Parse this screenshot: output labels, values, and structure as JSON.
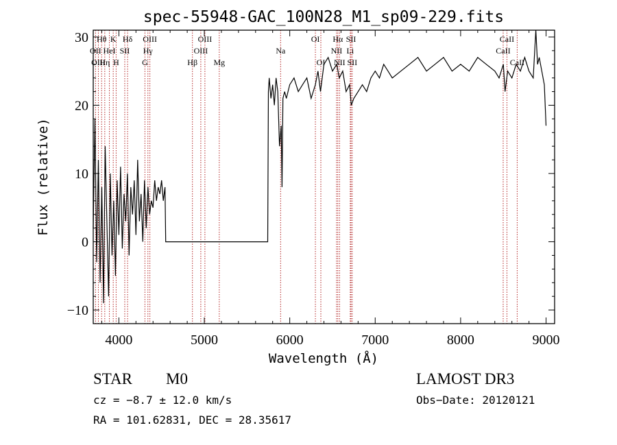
{
  "chart_data": {
    "type": "line",
    "title": "spec-55948-GAC_100N28_M1_sp09-229.fits",
    "xlabel": "Wavelength (Å)",
    "ylabel": "Flux (relative)",
    "xlim": [
      3700,
      9100
    ],
    "ylim": [
      -12,
      31
    ],
    "xticks": [
      4000,
      5000,
      6000,
      7000,
      8000,
      9000
    ],
    "yticks": [
      -10,
      0,
      10,
      20,
      30
    ],
    "grid": false,
    "series": [
      {
        "x": [
          3700,
          3720,
          3740,
          3760,
          3780,
          3800,
          3820,
          3840,
          3860,
          3880,
          3900,
          3920,
          3940,
          3960,
          3980,
          4000,
          4020,
          4040,
          4060,
          4080,
          4100,
          4120,
          4140,
          4160,
          4180,
          4200,
          4220,
          4240,
          4260,
          4280,
          4300,
          4320,
          4340,
          4360,
          4380,
          4400,
          4420,
          4440,
          4460,
          4480,
          4500,
          4520,
          4540,
          4548,
          4560,
          5700,
          5742,
          5750,
          5760,
          5780,
          5800,
          5820,
          5840,
          5860,
          5880,
          5900,
          5910,
          5920,
          5940,
          5960,
          6000,
          6050,
          6100,
          6150,
          6200,
          6250,
          6300,
          6330,
          6360,
          6400,
          6450,
          6500,
          6550,
          6580,
          6620,
          6660,
          6700,
          6720,
          6750,
          6800,
          6850,
          6900,
          6950,
          7000,
          7050,
          7100,
          7150,
          7200,
          7300,
          7400,
          7500,
          7600,
          7700,
          7800,
          7900,
          8000,
          8100,
          8200,
          8300,
          8400,
          8450,
          8500,
          8520,
          8550,
          8600,
          8650,
          8700,
          8750,
          8800,
          8850,
          8880,
          8900,
          8920,
          8950,
          8980,
          9000
        ],
        "values": [
          2,
          18,
          -3,
          12,
          -6,
          8,
          -9,
          14,
          3,
          -8,
          10,
          -2,
          6,
          -5,
          9,
          1,
          11,
          -1,
          7,
          3,
          10,
          -2,
          8,
          4,
          9,
          1,
          12,
          3,
          7,
          0,
          9,
          2,
          8,
          4,
          6,
          5,
          9,
          6,
          8,
          7,
          9,
          6,
          8,
          0,
          0,
          0,
          0,
          22,
          24,
          21,
          23,
          20,
          24,
          22,
          14,
          17,
          8,
          21,
          22,
          21,
          23,
          24,
          22,
          23,
          24,
          21,
          23,
          25,
          22,
          26,
          27,
          25,
          26,
          24,
          25,
          22,
          23,
          20,
          21,
          22,
          23,
          22,
          24,
          25,
          24,
          26,
          25,
          24,
          25,
          26,
          27,
          25,
          26,
          27,
          25,
          26,
          25,
          27,
          26,
          25,
          24,
          26,
          22,
          25,
          24,
          26,
          25,
          27,
          25,
          24,
          31,
          26,
          27,
          25,
          23,
          17
        ]
      }
    ],
    "spectral_lines": [
      {
        "name": "Hθ",
        "wavelength": 3798,
        "row": 0
      },
      {
        "name": "OII",
        "wavelength": 3727,
        "row": 1
      },
      {
        "name": "OIII",
        "wavelength": 3760,
        "row": 2
      },
      {
        "name": "Hη",
        "wavelength": 3835,
        "row": 2
      },
      {
        "name": "HeI",
        "wavelength": 3889,
        "row": 1
      },
      {
        "name": "K",
        "wavelength": 3934,
        "row": 0
      },
      {
        "name": "H",
        "wavelength": 3968,
        "row": 2
      },
      {
        "name": "SII",
        "wavelength": 4069,
        "row": 1
      },
      {
        "name": "Hδ",
        "wavelength": 4102,
        "row": 0
      },
      {
        "name": "G",
        "wavelength": 4305,
        "row": 2
      },
      {
        "name": "Hγ",
        "wavelength": 4340,
        "row": 1
      },
      {
        "name": "OIII",
        "wavelength": 4363,
        "row": 0
      },
      {
        "name": "Hβ",
        "wavelength": 4861,
        "row": 2
      },
      {
        "name": "OIII",
        "wavelength": 4959,
        "row": 1
      },
      {
        "name": "OIII",
        "wavelength": 5007,
        "row": 0
      },
      {
        "name": "Mg",
        "wavelength": 5175,
        "row": 2
      },
      {
        "name": "Na",
        "wavelength": 5893,
        "row": 1
      },
      {
        "name": "OI",
        "wavelength": 6300,
        "row": 0
      },
      {
        "name": "OI",
        "wavelength": 6364,
        "row": 2
      },
      {
        "name": "NII",
        "wavelength": 6548,
        "row": 1
      },
      {
        "name": "Hα",
        "wavelength": 6563,
        "row": 0
      },
      {
        "name": "NII",
        "wavelength": 6583,
        "row": 2
      },
      {
        "name": "Li",
        "wavelength": 6708,
        "row": 1
      },
      {
        "name": "SII",
        "wavelength": 6717,
        "row": 0
      },
      {
        "name": "SII",
        "wavelength": 6731,
        "row": 2
      },
      {
        "name": "CaII",
        "wavelength": 8498,
        "row": 1
      },
      {
        "name": "CaII",
        "wavelength": 8542,
        "row": 0
      },
      {
        "name": "CaII",
        "wavelength": 8662,
        "row": 2
      }
    ]
  },
  "info": {
    "object_class": "STAR",
    "subclass": "M0",
    "survey": "LAMOST DR3",
    "cz": "cz = −8.7 ± 12.0 km/s",
    "obs_date": "Obs−Date: 20120121",
    "coords": "RA = 101.62831, DEC =  28.35617"
  },
  "colors": {
    "spectrum": "#000000",
    "line_markers": "#b22222",
    "background": "#ffffff"
  }
}
